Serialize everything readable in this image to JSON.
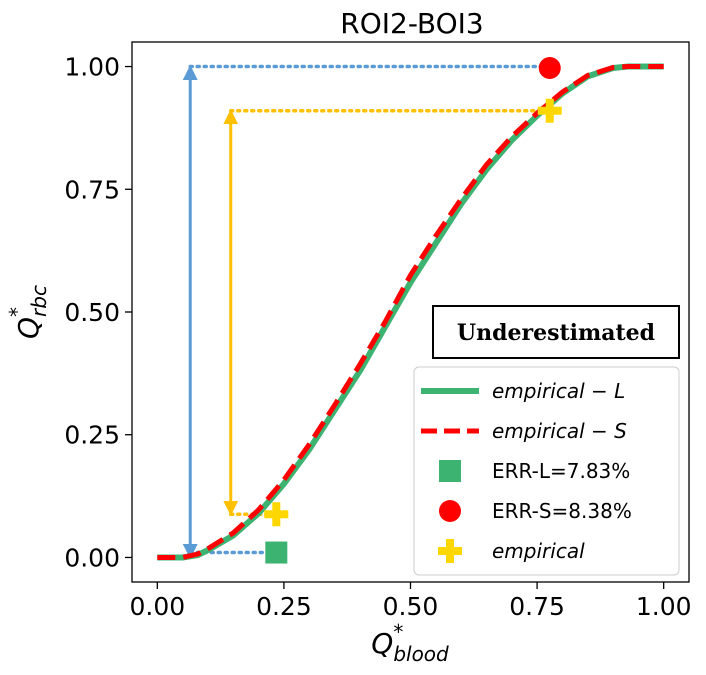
{
  "chart_data": {
    "type": "line",
    "title": "ROI2-BOI3",
    "xlabel": {
      "main": "Q",
      "sup": "*",
      "sub": "blood"
    },
    "ylabel": {
      "main": "Q",
      "sup": "*",
      "sub": "rbc"
    },
    "xlim": [
      -0.05,
      1.05
    ],
    "ylim": [
      -0.05,
      1.05
    ],
    "xticks": [
      0.0,
      0.25,
      0.5,
      0.75,
      1.0
    ],
    "xtick_labels": [
      "0.00",
      "0.25",
      "0.50",
      "0.75",
      "1.00"
    ],
    "yticks": [
      0.0,
      0.25,
      0.5,
      0.75,
      1.0
    ],
    "ytick_labels": [
      "0.00",
      "0.25",
      "0.50",
      "0.75",
      "1.00"
    ],
    "grid": false,
    "legend_position": "lower right",
    "series": [
      {
        "name": "empirical − L",
        "style": "solid",
        "color": "#3cb371",
        "x": [
          0.0,
          0.05,
          0.08,
          0.1,
          0.15,
          0.2,
          0.25,
          0.3,
          0.35,
          0.4,
          0.45,
          0.5,
          0.55,
          0.6,
          0.65,
          0.7,
          0.75,
          0.8,
          0.85,
          0.9,
          0.93,
          1.0
        ],
        "y": [
          0.0,
          0.0,
          0.005,
          0.015,
          0.045,
          0.09,
          0.15,
          0.22,
          0.3,
          0.38,
          0.47,
          0.56,
          0.64,
          0.72,
          0.79,
          0.85,
          0.9,
          0.945,
          0.98,
          0.997,
          1.0,
          1.0
        ]
      },
      {
        "name": "empirical − S",
        "style": "dashed",
        "color": "#ff0000",
        "x": [
          0.0,
          0.05,
          0.08,
          0.1,
          0.15,
          0.2,
          0.25,
          0.3,
          0.35,
          0.4,
          0.45,
          0.5,
          0.55,
          0.6,
          0.65,
          0.7,
          0.75,
          0.8,
          0.85,
          0.9,
          0.93,
          1.0
        ],
        "y": [
          0.0,
          0.0,
          0.007,
          0.018,
          0.05,
          0.097,
          0.158,
          0.23,
          0.31,
          0.393,
          0.48,
          0.575,
          0.655,
          0.73,
          0.8,
          0.857,
          0.905,
          0.948,
          0.982,
          0.998,
          1.0,
          1.0
        ]
      }
    ],
    "markers": [
      {
        "name": "ERR-L=7.83%",
        "shape": "square",
        "color": "#3cb371",
        "x": 0.235,
        "y": 0.01
      },
      {
        "name": "ERR-S=8.38%",
        "shape": "circle",
        "color": "#ff0000",
        "x": 0.775,
        "y": 0.997
      },
      {
        "name": "empirical",
        "shape": "plus",
        "color": "#ffd700",
        "points": [
          {
            "x": 0.235,
            "y": 0.088
          },
          {
            "x": 0.775,
            "y": 0.91
          }
        ]
      }
    ],
    "annotations": {
      "blue_arrow": {
        "x": 0.065,
        "y_from": 0.0,
        "y_to": 1.0,
        "dotted_to_x_top": 0.775,
        "dotted_to_x_bottom": 0.235,
        "bottom_y": 0.01,
        "color": "#5b9bd5"
      },
      "yellow_arrow": {
        "x": 0.145,
        "y_from": 0.088,
        "y_to": 0.91,
        "dotted_to_x": 0.775,
        "color": "#ffc000"
      }
    },
    "badge": "Underestimated",
    "legend": [
      {
        "label": "empirical − L",
        "italic": true,
        "kind": "line-solid",
        "color": "#3cb371"
      },
      {
        "label": "empirical − S",
        "italic": true,
        "kind": "line-dashed",
        "color": "#ff0000"
      },
      {
        "label": "ERR-L=7.83%",
        "italic": false,
        "kind": "square",
        "color": "#3cb371"
      },
      {
        "label": "ERR-S=8.38%",
        "italic": false,
        "kind": "circle",
        "color": "#ff0000"
      },
      {
        "label": "empirical",
        "italic": true,
        "kind": "plus",
        "color": "#ffd700"
      }
    ]
  }
}
